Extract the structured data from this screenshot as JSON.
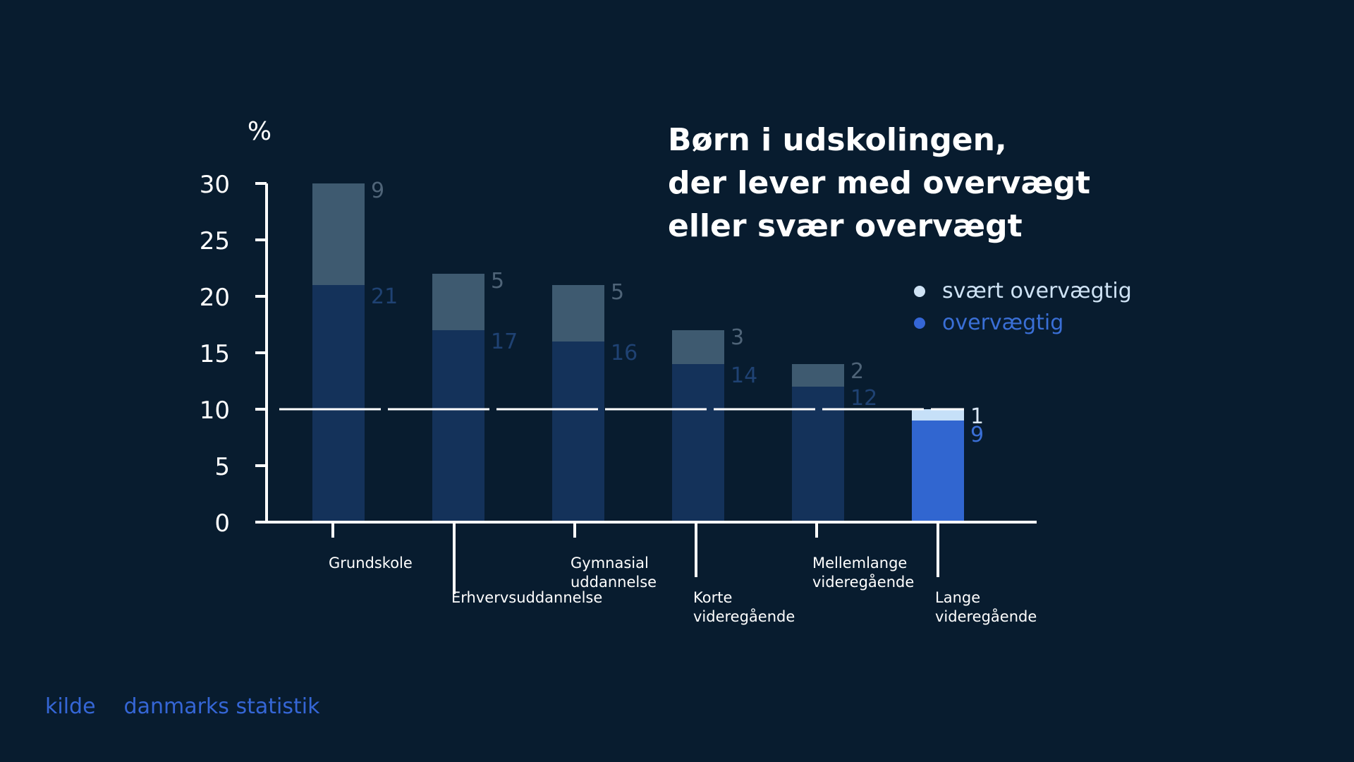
{
  "chart_data": {
    "type": "bar",
    "stacked": true,
    "title_lines": [
      "Børn i udskolingen,",
      "der lever med overvægt",
      "eller svær overvægt"
    ],
    "ylabel": "%",
    "ylim": [
      0,
      30
    ],
    "yticks": [
      "0",
      "5",
      "10",
      "15",
      "20",
      "25",
      "30"
    ],
    "reference_line": 10,
    "categories": [
      [
        "Grundskole"
      ],
      [
        "Erhvervsuddannelse"
      ],
      [
        "Gymnasial",
        "uddannelse"
      ],
      [
        "Korte",
        "videregående"
      ],
      [
        "Mellemlange",
        "videregående"
      ],
      [
        "Lange",
        "videregående"
      ]
    ],
    "series": [
      {
        "name": "overvægtig",
        "values": [
          21,
          17,
          16,
          14,
          12,
          9
        ]
      },
      {
        "name": "svært overvægtig",
        "values": [
          9,
          5,
          5,
          3,
          2,
          1
        ]
      }
    ],
    "highlight_index": 5,
    "legend_position": "right",
    "colors": {
      "background": "#081c2f",
      "bar_base": "#14325a",
      "bar_top": "#3e5a70",
      "label_base": "#1f4273",
      "label_top": "#4f6478",
      "highlight_base": "#3166d0",
      "highlight_top": "#c6e0f8",
      "highlight_label_base": "#3a6fd6",
      "highlight_label_top": "#dbe8f5",
      "axis": "#ffffff",
      "legend_top_dot": "#cfe3f5",
      "legend_base_dot": "#3566d6",
      "legend_top_text": "#cfe3f5",
      "legend_base_text": "#3a6fd6"
    }
  },
  "footer": {
    "source_label": "kilde",
    "source_value": "danmarks statistik"
  }
}
